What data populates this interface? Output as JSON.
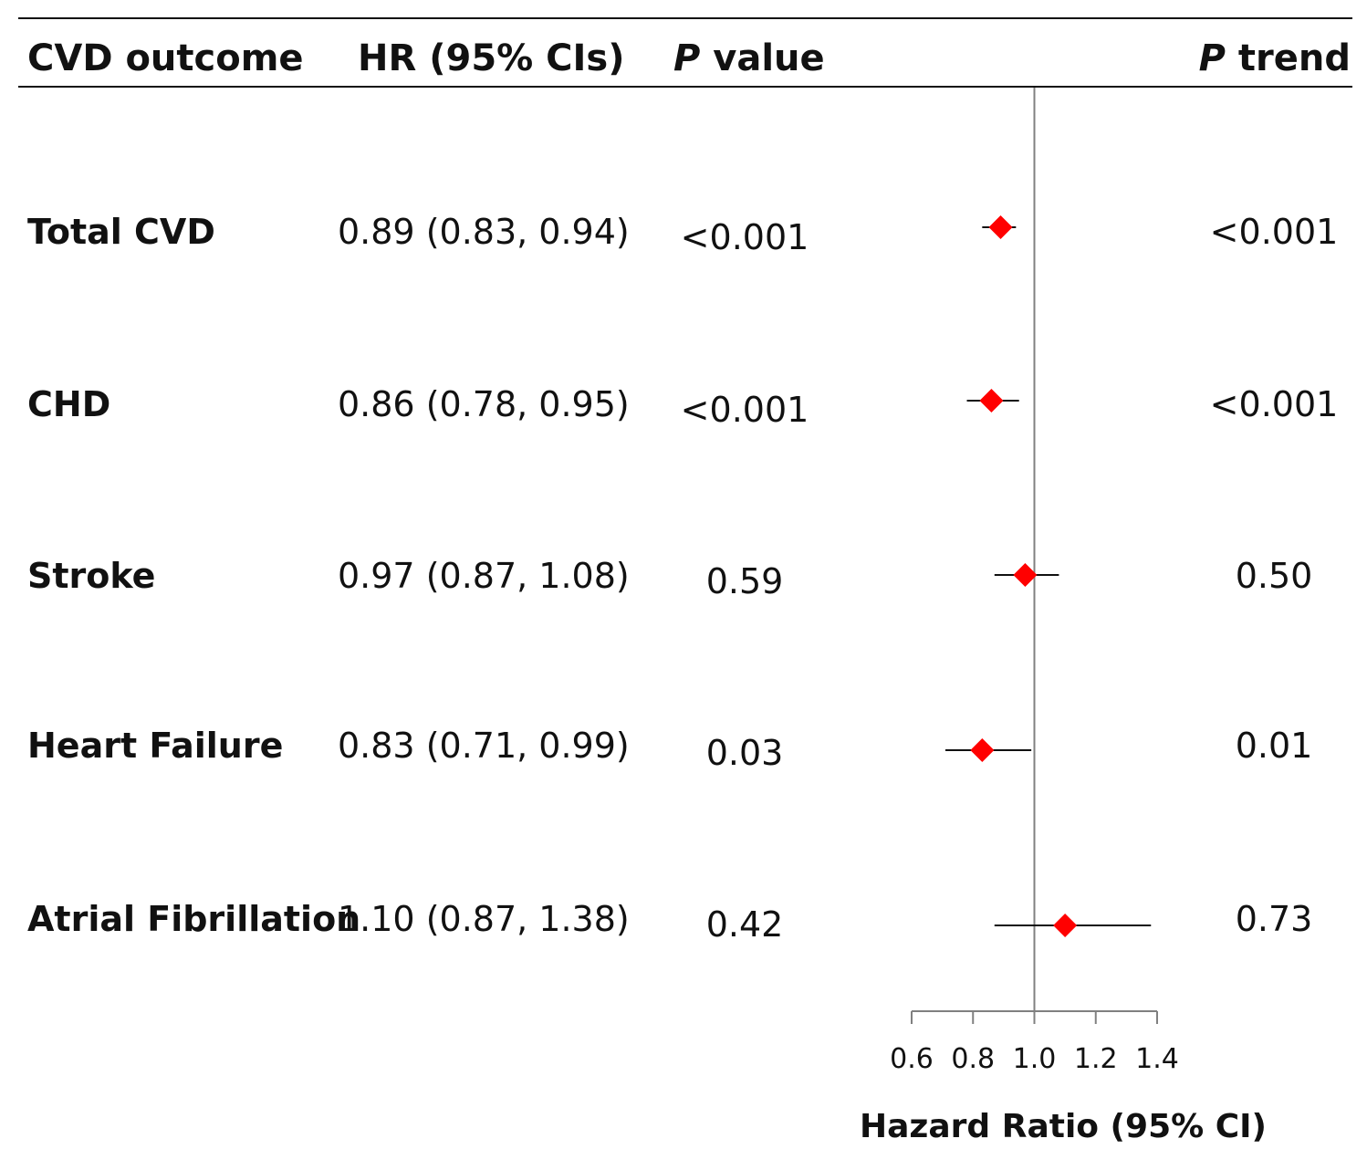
{
  "headers": {
    "outcome": "CVD outcome",
    "hr": "HR (95% CIs)",
    "pvalue_italic": "P",
    "pvalue_rest": " value",
    "ptrend_italic": "P",
    "ptrend_rest": " trend"
  },
  "rows": [
    {
      "outcome": "Total CVD",
      "hr_text": "0.89 (0.83, 0.94)",
      "p_value": "<0.001",
      "p_trend": "<0.001"
    },
    {
      "outcome": "CHD",
      "hr_text": "0.86 (0.78, 0.95)",
      "p_value": "<0.001",
      "p_trend": "<0.001"
    },
    {
      "outcome": "Stroke",
      "hr_text": "0.97 (0.87, 1.08)",
      "p_value": "0.59",
      "p_trend": "0.50"
    },
    {
      "outcome": "Heart Failure",
      "hr_text": "0.83 (0.71, 0.99)",
      "p_value": "0.03",
      "p_trend": "0.01"
    },
    {
      "outcome": "Atrial Fibrillation",
      "hr_text": "1.10 (0.87, 1.38)",
      "p_value": "0.42",
      "p_trend": "0.73"
    }
  ],
  "colors": {
    "marker": "#ff0000",
    "line": "#111111",
    "reference": "#808080"
  },
  "chart_data": {
    "type": "forest",
    "xlabel": "Hazard Ratio (95% CI)",
    "xlim": [
      0.6,
      1.4
    ],
    "xticks": [
      "0.6",
      "0.8",
      "1.0",
      "1.2",
      "1.4"
    ],
    "reference_line": 1.0,
    "categories": [
      "Total CVD",
      "CHD",
      "Stroke",
      "Heart Failure",
      "Atrial Fibrillation"
    ],
    "hr": [
      0.89,
      0.86,
      0.97,
      0.83,
      1.1
    ],
    "ci_lower": [
      0.83,
      0.78,
      0.87,
      0.71,
      0.87
    ],
    "ci_upper": [
      0.94,
      0.95,
      1.08,
      0.99,
      1.38
    ]
  }
}
